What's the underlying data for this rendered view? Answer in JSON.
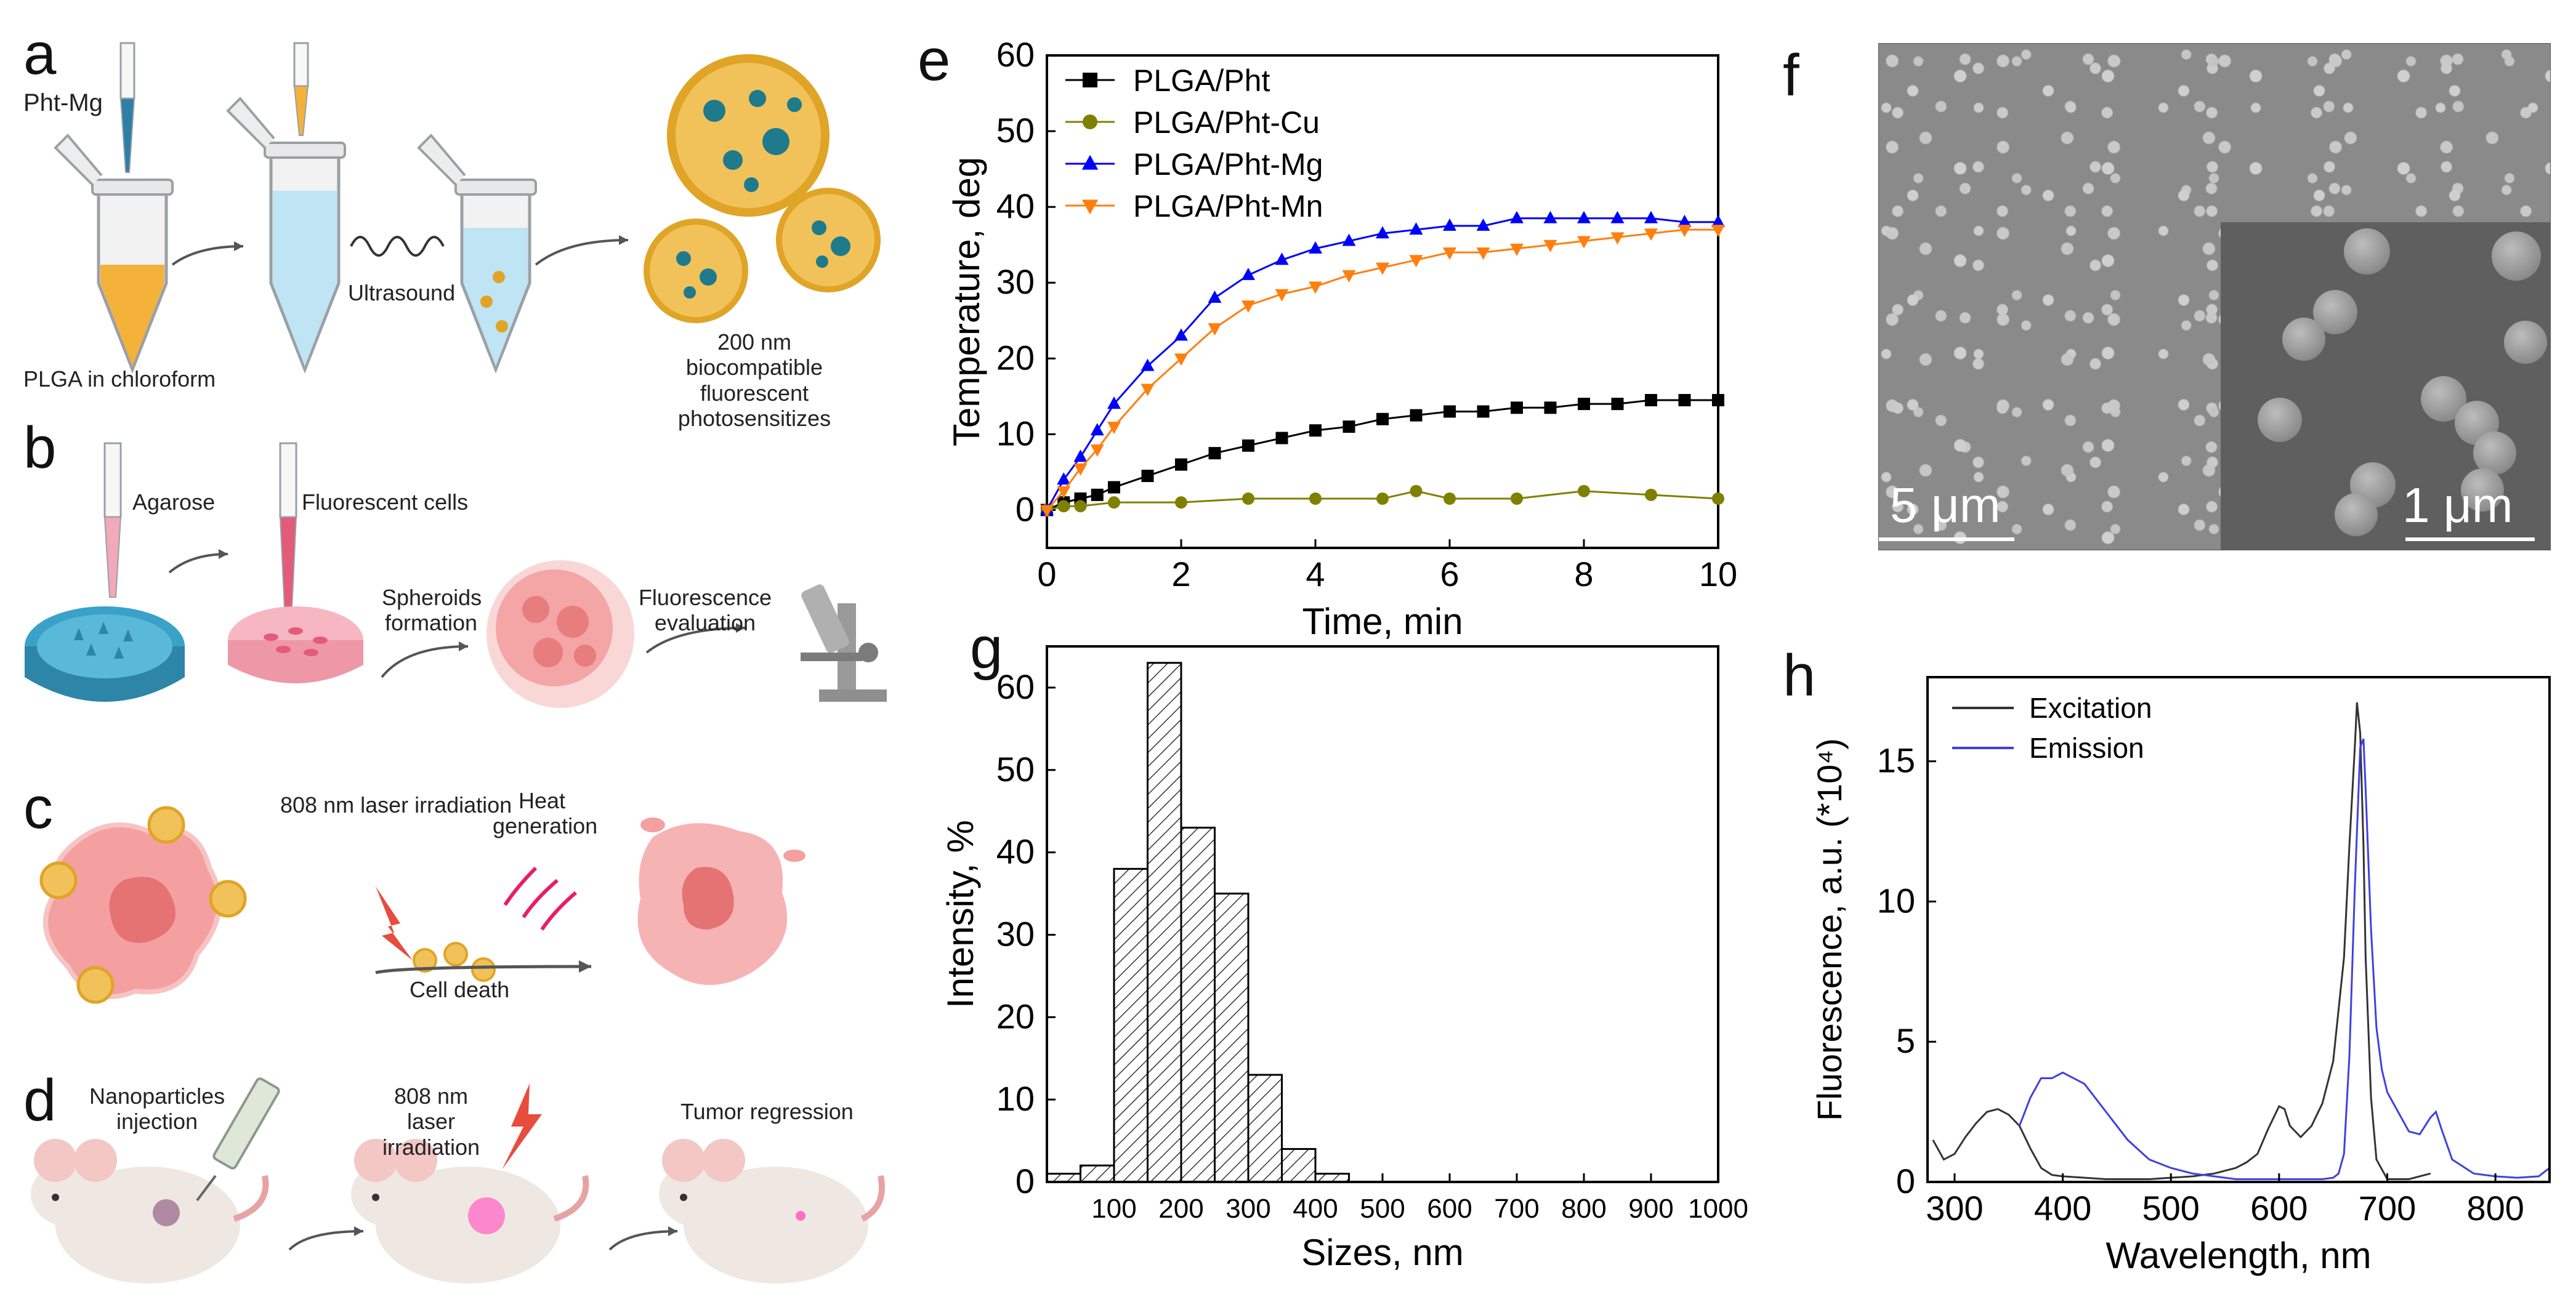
{
  "panels": {
    "a": "a",
    "b": "b",
    "c": "c",
    "d": "d",
    "e": "e",
    "f": "f",
    "g": "g",
    "h": "h"
  },
  "panel_a": {
    "pht_mg": "Pht-Mg",
    "plga": "PLGA in chloroform",
    "ultrasound": "Ultrasound",
    "np_caption": "200 nm biocompatible fluorescent photosensitizes",
    "colors": {
      "tube_fill": "#f4b23a",
      "water": "#bfe4f4",
      "shell": "#e0a426",
      "core": "#1f7a8c"
    }
  },
  "panel_b": {
    "agarose": "Agarose",
    "fluorescent_cells": "Fluorescent cells",
    "spheroids": "Spheroids formation",
    "fluorescence": "Fluorescence evaluation"
  },
  "panel_c": {
    "laser": "808 nm laser irradiation",
    "heat": "Heat generation",
    "death": "Cell death"
  },
  "panel_d": {
    "inject": "Nanoparticles injection",
    "laser": "808 nm laser irradiation",
    "regression": "Tumor regression"
  },
  "panel_f": {
    "scale_main": "5 μm",
    "scale_inset": "1 μm"
  },
  "chart_data": [
    {
      "panel": "e",
      "type": "line",
      "xlabel": "Time, min",
      "ylabel": "Temperature, deg",
      "xlim": [
        0,
        10
      ],
      "ylim": [
        -5,
        60
      ],
      "xticks": [
        0,
        2,
        4,
        6,
        8,
        10
      ],
      "yticks": [
        0,
        10,
        20,
        30,
        40,
        50,
        60
      ],
      "legend": "top-left",
      "series": [
        {
          "name": "PLGA/Pht",
          "color": "#000000",
          "marker": "square",
          "x": [
            0,
            0.25,
            0.5,
            0.75,
            1,
            1.5,
            2,
            2.5,
            3,
            3.5,
            4,
            4.5,
            5,
            5.5,
            6,
            6.5,
            7,
            7.5,
            8,
            8.5,
            9,
            9.5,
            10
          ],
          "y": [
            0,
            1,
            1.5,
            2,
            3,
            4.5,
            6,
            7.5,
            8.5,
            9.5,
            10.5,
            11,
            12,
            12.5,
            13,
            13,
            13.5,
            13.5,
            14,
            14,
            14.5,
            14.5,
            14.5
          ]
        },
        {
          "name": "PLGA/Pht-Cu",
          "color": "#808000",
          "marker": "circle",
          "x": [
            0,
            0.25,
            0.5,
            1,
            2,
            3,
            4,
            5,
            5.5,
            6,
            7,
            8,
            9,
            10
          ],
          "y": [
            0,
            0.5,
            0.5,
            1,
            1,
            1.5,
            1.5,
            1.5,
            2.5,
            1.5,
            1.5,
            2.5,
            2,
            1.5
          ]
        },
        {
          "name": "PLGA/Pht-Mg",
          "color": "#0000ff",
          "marker": "triangle-up",
          "x": [
            0,
            0.25,
            0.5,
            0.75,
            1,
            1.5,
            2,
            2.5,
            3,
            3.5,
            4,
            4.5,
            5,
            5.5,
            6,
            6.5,
            7,
            7.5,
            8,
            8.5,
            9,
            9.5,
            10
          ],
          "y": [
            0,
            4,
            7,
            10.5,
            14,
            19,
            23,
            28,
            31,
            33,
            34.5,
            35.5,
            36.5,
            37,
            37.5,
            37.5,
            38.5,
            38.5,
            38.5,
            38.5,
            38.5,
            38,
            38
          ]
        },
        {
          "name": "PLGA/Pht-Mn",
          "color": "#ff7f0e",
          "marker": "triangle-down",
          "x": [
            0,
            0.25,
            0.5,
            0.75,
            1,
            1.5,
            2,
            2.5,
            3,
            3.5,
            4,
            4.5,
            5,
            5.5,
            6,
            6.5,
            7,
            7.5,
            8,
            8.5,
            9,
            9.5,
            10
          ],
          "y": [
            0,
            2.5,
            5.5,
            8,
            11,
            16,
            20,
            24,
            27,
            28.5,
            29.5,
            31,
            32,
            33,
            34,
            34,
            34.5,
            35,
            35.5,
            36,
            36.5,
            37,
            37
          ]
        }
      ]
    },
    {
      "panel": "g",
      "type": "bar",
      "xlabel": "Sizes, nm",
      "ylabel": "Intensity, %",
      "xlim": [
        0,
        1000
      ],
      "ylim": [
        0,
        65
      ],
      "xticks": [
        100,
        200,
        300,
        400,
        500,
        600,
        700,
        800,
        900,
        1000
      ],
      "yticks": [
        0,
        10,
        20,
        30,
        40,
        50,
        60
      ],
      "bin_width": 50,
      "bins": [
        0,
        50,
        100,
        150,
        200,
        250,
        300,
        350,
        400
      ],
      "values": [
        1,
        2,
        38,
        63,
        43,
        35,
        13,
        4,
        1
      ]
    },
    {
      "panel": "h",
      "type": "line",
      "xlabel": "Wavelength, nm",
      "ylabel": "Fluorescence, a.u. (*10⁴)",
      "xlim": [
        275,
        850
      ],
      "ylim": [
        0,
        18
      ],
      "xticks": [
        300,
        400,
        500,
        600,
        700,
        800
      ],
      "yticks": [
        0,
        5,
        10,
        15
      ],
      "legend": "top-left",
      "series": [
        {
          "name": "Excitation",
          "color": "#333333",
          "x": [
            280,
            290,
            300,
            310,
            320,
            330,
            340,
            350,
            360,
            370,
            380,
            390,
            400,
            420,
            440,
            460,
            480,
            500,
            520,
            540,
            560,
            570,
            580,
            590,
            600,
            605,
            610,
            620,
            630,
            640,
            650,
            660,
            665,
            670,
            672,
            675,
            678,
            680,
            685,
            690,
            700,
            710,
            720,
            740
          ],
          "y": [
            1.5,
            0.8,
            1,
            1.6,
            2.1,
            2.5,
            2.6,
            2.4,
            2.0,
            1.2,
            0.5,
            0.25,
            0.2,
            0.15,
            0.1,
            0.1,
            0.1,
            0.15,
            0.2,
            0.3,
            0.5,
            0.7,
            1.0,
            1.9,
            2.7,
            2.6,
            2.0,
            1.6,
            2.0,
            2.8,
            4.3,
            8.0,
            12.0,
            15.5,
            17.1,
            16.0,
            12.0,
            8.0,
            3.0,
            0.8,
            0.1,
            0.1,
            0.1,
            0.3
          ]
        },
        {
          "name": "Emission",
          "color": "#4040e0",
          "x": [
            360,
            370,
            380,
            390,
            400,
            410,
            420,
            430,
            440,
            460,
            480,
            500,
            520,
            540,
            560,
            580,
            600,
            620,
            640,
            650,
            655,
            660,
            665,
            670,
            675,
            678,
            680,
            685,
            690,
            695,
            700,
            710,
            720,
            730,
            740,
            745,
            750,
            760,
            780,
            800,
            820,
            840,
            850
          ],
          "y": [
            2.0,
            3.0,
            3.7,
            3.7,
            3.9,
            3.7,
            3.5,
            3.0,
            2.5,
            1.5,
            0.8,
            0.5,
            0.3,
            0.2,
            0.1,
            0.1,
            0.1,
            0.1,
            0.1,
            0.15,
            0.3,
            1.0,
            4.5,
            10.5,
            15.5,
            15.8,
            14.0,
            9.0,
            5.5,
            4.0,
            3.2,
            2.5,
            1.8,
            1.7,
            2.3,
            2.5,
            1.9,
            0.8,
            0.3,
            0.2,
            0.15,
            0.2,
            0.5
          ]
        }
      ]
    }
  ]
}
